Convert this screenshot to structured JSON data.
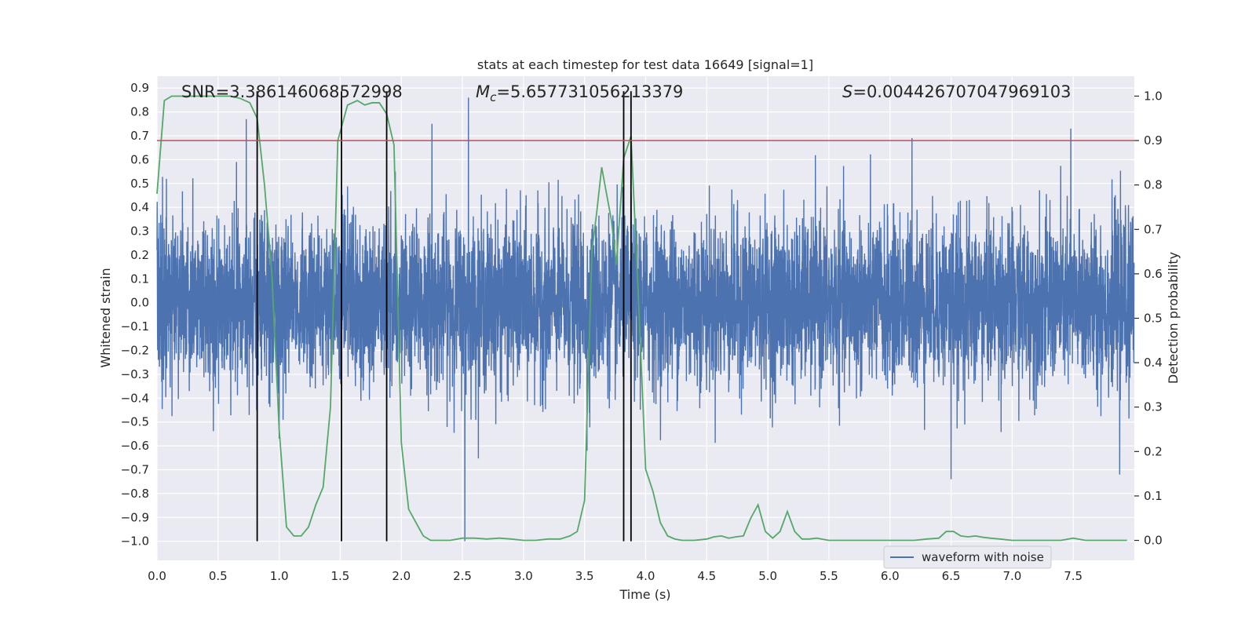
{
  "chart_data": {
    "type": "line",
    "title": "stats at each timestep for test data 16649 [signal=1]",
    "xlabel": "Time (s)",
    "ylabel": "Whitened strain",
    "y2label": "Detection probability",
    "xlim": [
      0.0,
      8.0
    ],
    "ylim": [
      -1.08,
      0.95
    ],
    "y2lim": [
      -0.045,
      1.045
    ],
    "x_ticks": [
      0.0,
      0.5,
      1.0,
      1.5,
      2.0,
      2.5,
      3.0,
      3.5,
      4.0,
      4.5,
      5.0,
      5.5,
      6.0,
      6.5,
      7.0,
      7.5
    ],
    "x_tick_labels": [
      "0.0",
      "0.5",
      "1.0",
      "1.5",
      "2.0",
      "2.5",
      "3.0",
      "3.5",
      "4.0",
      "4.5",
      "5.0",
      "5.5",
      "6.0",
      "6.5",
      "7.0",
      "7.5"
    ],
    "y_ticks": [
      0.9,
      0.8,
      0.7,
      0.6,
      0.5,
      0.4,
      0.3,
      0.2,
      0.1,
      0.0,
      -0.1,
      -0.2,
      -0.3,
      -0.4,
      -0.5,
      -0.6,
      -0.7,
      -0.8,
      -0.9,
      -1.0
    ],
    "y_tick_labels": [
      "0.9",
      "0.8",
      "0.7",
      "0.6",
      "0.5",
      "0.4",
      "0.3",
      "0.2",
      "0.1",
      "0.0",
      "−0.1",
      "−0.2",
      "−0.3",
      "−0.4",
      "−0.5",
      "−0.6",
      "−0.7",
      "−0.8",
      "−0.9",
      "−1.0"
    ],
    "y2_ticks": [
      1.0,
      0.9,
      0.8,
      0.7,
      0.6,
      0.5,
      0.4,
      0.3,
      0.2,
      0.1,
      0.0
    ],
    "y2_tick_labels": [
      "1.0",
      "0.9",
      "0.8",
      "0.7",
      "0.6",
      "0.5",
      "0.4",
      "0.3",
      "0.2",
      "0.1",
      "0.0"
    ],
    "grid": true,
    "legend": {
      "placement": "lower-right",
      "entries": [
        "waveform with noise"
      ]
    },
    "annotations": {
      "snr": "SNR=3.386146068572998",
      "mc_symbol": "M",
      "mc_sub": "c",
      "mc_value": "=5.657731056213379",
      "s_symbol": "S",
      "s_value": "=0.004426707047969103"
    },
    "threshold": {
      "axis": "y2",
      "value": 0.9,
      "color": "#c44e52"
    },
    "vertical_markers": {
      "x": [
        0.82,
        1.51,
        1.88,
        3.82,
        3.88
      ],
      "ymin": -1.0,
      "ymax": 0.9,
      "color": "#000000"
    },
    "series": [
      {
        "name": "waveform with noise",
        "axis": "y",
        "color": "#4c72b0",
        "kind": "noise",
        "amplitude_envelope": 0.28,
        "sample_peaks": [
          {
            "x": 0.65,
            "y": 0.59
          },
          {
            "x": 0.73,
            "y": 0.77
          },
          {
            "x": 1.0,
            "y": -0.57
          },
          {
            "x": 1.95,
            "y": 0.55
          },
          {
            "x": 2.25,
            "y": 0.75
          },
          {
            "x": 2.52,
            "y": -1.0
          },
          {
            "x": 2.55,
            "y": 0.86
          },
          {
            "x": 3.52,
            "y": -0.62
          },
          {
            "x": 6.18,
            "y": 0.69
          },
          {
            "x": 6.5,
            "y": -0.74
          },
          {
            "x": 7.48,
            "y": 0.73
          },
          {
            "x": 7.88,
            "y": -0.72
          }
        ]
      },
      {
        "name": "",
        "axis": "y2",
        "color": "#55a868",
        "x": [
          0.0,
          0.06,
          0.12,
          0.2,
          0.3,
          0.4,
          0.5,
          0.6,
          0.68,
          0.76,
          0.82,
          0.88,
          0.94,
          1.0,
          1.06,
          1.12,
          1.18,
          1.24,
          1.3,
          1.36,
          1.42,
          1.48,
          1.56,
          1.64,
          1.7,
          1.76,
          1.82,
          1.88,
          1.94,
          2.0,
          2.06,
          2.12,
          2.18,
          2.24,
          2.3,
          2.4,
          2.5,
          2.6,
          2.7,
          2.8,
          2.9,
          3.0,
          3.1,
          3.2,
          3.3,
          3.38,
          3.44,
          3.5,
          3.56,
          3.6,
          3.64,
          3.68,
          3.72,
          3.76,
          3.82,
          3.88,
          3.94,
          4.0,
          4.06,
          4.12,
          4.18,
          4.24,
          4.3,
          4.4,
          4.5,
          4.56,
          4.62,
          4.68,
          4.74,
          4.8,
          4.86,
          4.92,
          4.98,
          5.04,
          5.1,
          5.16,
          5.22,
          5.28,
          5.34,
          5.4,
          5.5,
          5.6,
          5.7,
          5.8,
          5.9,
          6.0,
          6.1,
          6.2,
          6.3,
          6.4,
          6.46,
          6.52,
          6.58,
          6.64,
          6.7,
          6.76,
          6.82,
          6.9,
          7.0,
          7.1,
          7.2,
          7.3,
          7.4,
          7.5,
          7.6,
          7.7,
          7.8,
          7.94
        ],
        "y": [
          0.78,
          0.99,
          1.0,
          1.0,
          1.0,
          1.0,
          1.0,
          1.0,
          0.995,
          0.985,
          0.95,
          0.8,
          0.6,
          0.25,
          0.03,
          0.01,
          0.01,
          0.03,
          0.08,
          0.12,
          0.3,
          0.9,
          0.98,
          0.99,
          0.98,
          0.985,
          0.985,
          0.96,
          0.89,
          0.22,
          0.07,
          0.04,
          0.01,
          0.0,
          0.0,
          0.0,
          0.005,
          0.005,
          0.003,
          0.005,
          0.003,
          0.0,
          0.0,
          0.003,
          0.003,
          0.01,
          0.02,
          0.09,
          0.65,
          0.74,
          0.84,
          0.78,
          0.72,
          0.62,
          0.86,
          0.91,
          0.55,
          0.16,
          0.11,
          0.04,
          0.01,
          0.003,
          0.0,
          0.0,
          0.003,
          0.008,
          0.01,
          0.005,
          0.008,
          0.01,
          0.05,
          0.08,
          0.02,
          0.005,
          0.02,
          0.065,
          0.02,
          0.003,
          0.003,
          0.005,
          0.0,
          0.0,
          0.0,
          0.0,
          0.0,
          0.0,
          0.0,
          0.0,
          0.003,
          0.005,
          0.02,
          0.02,
          0.01,
          0.008,
          0.01,
          0.007,
          0.005,
          0.003,
          0.0,
          0.0,
          0.0,
          0.0,
          0.0,
          0.005,
          0.0,
          0.0,
          0.0,
          0.0
        ]
      }
    ]
  }
}
